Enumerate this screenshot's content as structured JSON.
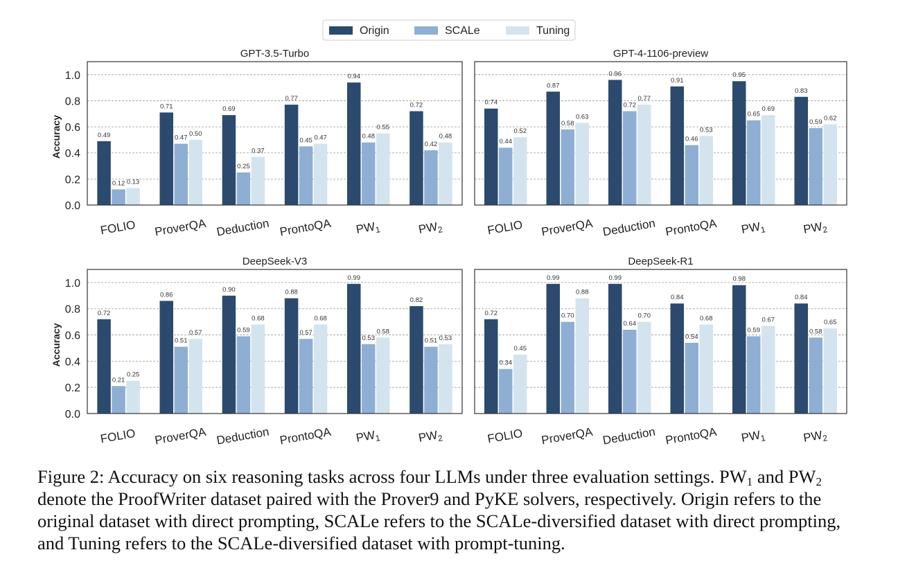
{
  "legend": {
    "entries": [
      {
        "label": "Origin",
        "color": "#2b4a6e"
      },
      {
        "label": "SCALe",
        "color": "#8faed3"
      },
      {
        "label": "Tuning",
        "color": "#d3e4ef"
      }
    ]
  },
  "chart_data": [
    {
      "type": "bar",
      "title": "GPT-3.5-Turbo",
      "ylabel": "Accuracy",
      "ylim": [
        0,
        1.1
      ],
      "yticks": [
        "0.0",
        "0.2",
        "0.4",
        "0.6",
        "0.8",
        "1.0"
      ],
      "categories": [
        "FOLIO",
        "ProverQA",
        "Deduction",
        "ProntoQA",
        "PW1",
        "PW2"
      ],
      "series": [
        {
          "name": "Origin",
          "values": [
            0.49,
            0.71,
            0.69,
            0.77,
            0.94,
            0.72
          ]
        },
        {
          "name": "SCALe",
          "values": [
            0.12,
            0.47,
            0.25,
            0.45,
            0.48,
            0.42
          ]
        },
        {
          "name": "Tuning",
          "values": [
            0.13,
            0.5,
            0.37,
            0.47,
            0.55,
            0.48
          ]
        }
      ],
      "grid": "y-dashed"
    },
    {
      "type": "bar",
      "title": "GPT-4-1106-preview",
      "ylabel": "",
      "ylim": [
        0,
        1.1
      ],
      "yticks": [],
      "categories": [
        "FOLIO",
        "ProverQA",
        "Deduction",
        "ProntoQA",
        "PW1",
        "PW2"
      ],
      "series": [
        {
          "name": "Origin",
          "values": [
            0.74,
            0.87,
            0.96,
            0.91,
            0.95,
            0.83
          ]
        },
        {
          "name": "SCALe",
          "values": [
            0.44,
            0.58,
            0.72,
            0.46,
            0.65,
            0.59
          ]
        },
        {
          "name": "Tuning",
          "values": [
            0.52,
            0.63,
            0.77,
            0.53,
            0.69,
            0.62
          ]
        }
      ],
      "grid": "y-dashed"
    },
    {
      "type": "bar",
      "title": "DeepSeek-V3",
      "ylabel": "Accuracy",
      "ylim": [
        0,
        1.1
      ],
      "yticks": [
        "0.0",
        "0.2",
        "0.4",
        "0.6",
        "0.8",
        "1.0"
      ],
      "categories": [
        "FOLIO",
        "ProverQA",
        "Deduction",
        "ProntoQA",
        "PW1",
        "PW2"
      ],
      "series": [
        {
          "name": "Origin",
          "values": [
            0.72,
            0.86,
            0.9,
            0.88,
            0.99,
            0.82
          ]
        },
        {
          "name": "SCALe",
          "values": [
            0.21,
            0.51,
            0.59,
            0.57,
            0.53,
            0.51
          ]
        },
        {
          "name": "Tuning",
          "values": [
            0.25,
            0.57,
            0.68,
            0.68,
            0.58,
            0.53
          ]
        }
      ],
      "grid": "y-dashed"
    },
    {
      "type": "bar",
      "title": "DeepSeek-R1",
      "ylabel": "",
      "ylim": [
        0,
        1.1
      ],
      "yticks": [],
      "categories": [
        "FOLIO",
        "ProverQA",
        "Deduction",
        "ProntoQA",
        "PW1",
        "PW2"
      ],
      "series": [
        {
          "name": "Origin",
          "values": [
            0.72,
            0.99,
            0.99,
            0.84,
            0.98,
            0.84
          ]
        },
        {
          "name": "SCALe",
          "values": [
            0.34,
            0.7,
            0.64,
            0.54,
            0.59,
            0.58
          ]
        },
        {
          "name": "Tuning",
          "values": [
            0.45,
            0.88,
            0.7,
            0.68,
            0.67,
            0.65
          ]
        }
      ],
      "grid": "y-dashed"
    }
  ],
  "caption": {
    "label": "Figure 2:",
    "text_1": " Accuracy on six reasoning tasks across four LLMs under three evaluation settings. PW",
    "sub_1": "1",
    "text_2": " and PW",
    "sub_2": "2",
    "text_3": " denote the ProofWriter dataset paired with the Prover9 and PyKE solvers, respectively. Origin refers to the original dataset with direct prompting, SCALe refers to the SCALe-diversified dataset with direct prompting, and Tuning refers to the SCALe-diversified dataset with prompt-tuning."
  }
}
